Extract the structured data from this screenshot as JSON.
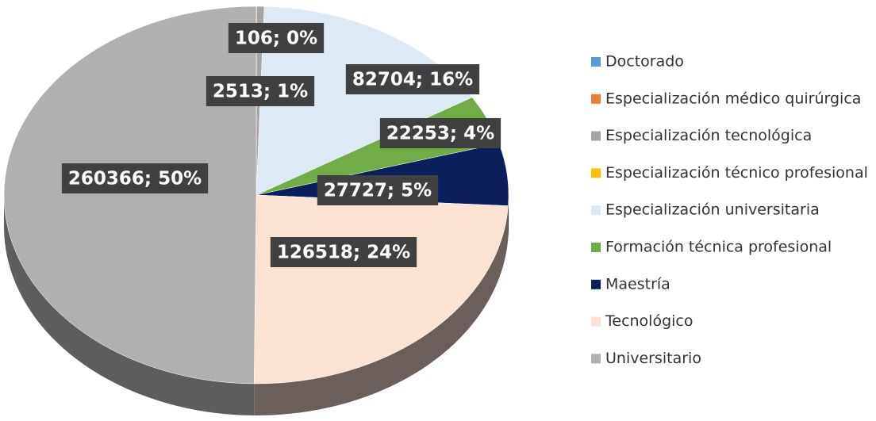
{
  "chart_data": {
    "type": "pie3d",
    "categories": [
      "Doctorado",
      "Especialización médico quirúrgica",
      "Especialización tecnológica",
      "Especialización técnico profesional",
      "Especialización universitaria",
      "Formación técnica profesional",
      "Maestría",
      "Tecnológico",
      "Universitario"
    ],
    "values": [
      null,
      106,
      2513,
      null,
      82704,
      22253,
      27727,
      126518,
      260366
    ],
    "value_labels": [
      null,
      "106; 0%",
      "2513; 1%",
      null,
      "82704; 16%",
      "22253; 4%",
      "27727; 5%",
      "126518; 24%",
      "260366; 50%"
    ],
    "colors": [
      "#5b9bd5",
      "#ed7d31",
      "#a5a5a5",
      "#ffc000",
      "#dee9f6",
      "#70ad47",
      "#0a1f5c",
      "#fbe3d4",
      "#b2afaf"
    ],
    "side_colors": [
      "#3e6c96",
      "#a4551f",
      "#6d6d6d",
      "#b08600",
      "#98a4b0",
      "#4c7830",
      "#050f2e",
      "#6b5f5b",
      "#5e5c5c"
    ],
    "legend": "right"
  }
}
